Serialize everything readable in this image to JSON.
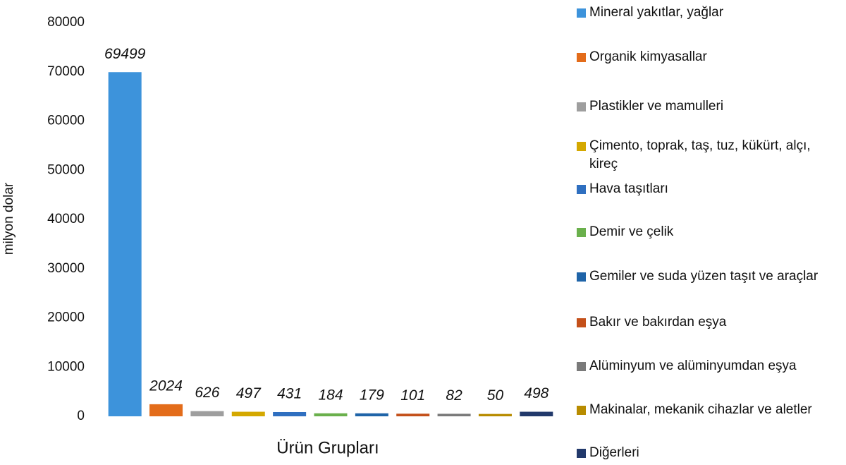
{
  "chart_data": {
    "type": "bar",
    "y_label": "milyon dolar",
    "x_label": "Ürün Grupları",
    "categories": [
      "Mineral yakıtlar, yağlar",
      "Organik kimyasallar",
      "Plastikler ve mamulleri",
      "Çimento, toprak, taş, tuz, kükürt, alçı, kireç",
      "Hava taşıtları",
      "Demir ve çelik",
      "Gemiler ve suda yüzen taşıt ve araçlar",
      "Bakır ve bakırdan eşya",
      "Alüminyum ve alüminyumdan eşya",
      "Makinalar, mekanik cihazlar ve aletler",
      "Diğerleri"
    ],
    "values": [
      69499,
      2024,
      626,
      497,
      431,
      184,
      179,
      101,
      82,
      50,
      498
    ],
    "colors": [
      "#3d93db",
      "#e36c1a",
      "#9e9e9e",
      "#d4a800",
      "#2f6fc0",
      "#6ab04c",
      "#1f64a8",
      "#c4501a",
      "#7a7a7a",
      "#b88c00",
      "#22396b"
    ],
    "ylim": [
      0,
      80000
    ],
    "yticks": [
      0,
      10000,
      20000,
      30000,
      40000,
      50000,
      60000,
      70000,
      80000
    ],
    "legend": "right"
  }
}
